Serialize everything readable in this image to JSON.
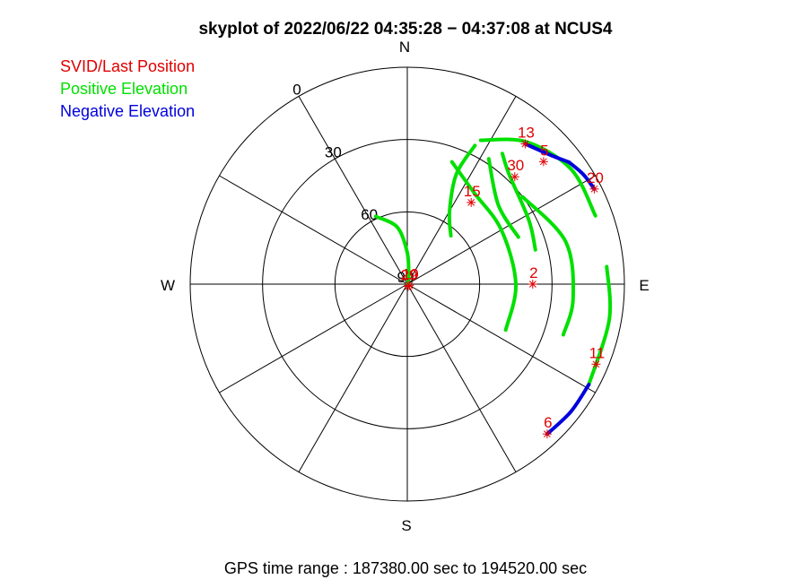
{
  "chart_data": {
    "type": "scatter",
    "title": "skyplot of 2022/06/22 04:35:28 − 04:37:08 at NCUS4",
    "footer": "GPS time range : 187380.00 sec to 194520.00 sec",
    "legend": [
      {
        "label": "SVID/Last Position",
        "color": "#e00000"
      },
      {
        "label": "Positive Elevation",
        "color": "#00e000"
      },
      {
        "label": "Negative Elevation",
        "color": "#0000dd"
      }
    ],
    "legend_placement": "top-left",
    "direction_labels": {
      "north": "N",
      "east": "E",
      "south": "S",
      "west": "W"
    },
    "elevation_ticks": [
      "0",
      "30",
      "60",
      "90"
    ],
    "elevation_range": [
      0,
      90
    ],
    "azimuth_spokes_deg": [
      0,
      30,
      60,
      90,
      120,
      150,
      180,
      210,
      240,
      270,
      300,
      330
    ],
    "satellites": [
      {
        "svid": "30",
        "last_azimuth": 45,
        "last_elevation": 27
      },
      {
        "svid": "13",
        "last_azimuth": 40,
        "last_elevation": 14
      },
      {
        "svid": "5",
        "last_azimuth": 48,
        "last_elevation": 14
      },
      {
        "svid": "15",
        "last_azimuth": 38,
        "last_elevation": 47
      },
      {
        "svid": "20",
        "last_azimuth": 63,
        "last_elevation": 3
      },
      {
        "svid": "2",
        "last_azimuth": 90,
        "last_elevation": 38
      },
      {
        "svid": "11",
        "last_azimuth": 113,
        "last_elevation": 5
      },
      {
        "svid": "6",
        "last_azimuth": 137,
        "last_elevation": 5
      },
      {
        "svid": "29",
        "last_azimuth": 160,
        "last_elevation": 89
      },
      {
        "svid": "10",
        "last_azimuth": 120,
        "last_elevation": 89
      }
    ],
    "tracks": [
      {
        "sign": "positive",
        "points": [
          [
            -25,
            59
          ],
          [
            -10,
            66
          ],
          [
            0,
            77
          ],
          [
            10,
            87
          ],
          [
            20,
            90
          ]
        ]
      },
      {
        "sign": "positive",
        "points": [
          [
            20,
            36
          ],
          [
            36,
            43
          ],
          [
            60,
            45
          ],
          [
            90,
            45
          ],
          [
            115,
            45
          ]
        ]
      },
      {
        "sign": "positive",
        "points": [
          [
            27,
            23
          ],
          [
            40,
            13
          ],
          [
            55,
            7
          ],
          [
            70,
            7
          ]
        ]
      },
      {
        "sign": "positive",
        "points": [
          [
            26,
            26
          ],
          [
            24,
            40
          ],
          [
            30,
            55
          ],
          [
            42,
            63
          ]
        ]
      },
      {
        "sign": "positive",
        "points": [
          [
            33,
            28
          ],
          [
            49,
            40
          ],
          [
            67,
            40
          ]
        ]
      },
      {
        "sign": "positive",
        "points": [
          [
            36,
            23
          ],
          [
            43,
            28
          ],
          [
            62,
            33
          ],
          [
            75,
            35
          ]
        ]
      },
      {
        "sign": "positive",
        "points": [
          [
            53,
            30
          ],
          [
            75,
            22
          ],
          [
            95,
            21
          ],
          [
            108,
            22
          ]
        ]
      },
      {
        "sign": "positive",
        "points": [
          [
            85,
            7
          ],
          [
            100,
            5
          ],
          [
            119,
            4
          ]
        ]
      },
      {
        "sign": "negative",
        "points": [
          [
            40,
            14
          ],
          [
            48,
            10
          ],
          [
            53,
            6
          ]
        ]
      },
      {
        "sign": "negative",
        "points": [
          [
            53,
            6
          ],
          [
            58,
            4
          ],
          [
            63,
            3
          ]
        ]
      },
      {
        "sign": "negative",
        "points": [
          [
            119,
            4
          ],
          [
            128,
            4
          ],
          [
            137,
            5
          ]
        ]
      }
    ]
  },
  "colors": {
    "svid": "#e00000",
    "positive": "#00e000",
    "negative": "#0000dd",
    "axes": "#000000"
  }
}
